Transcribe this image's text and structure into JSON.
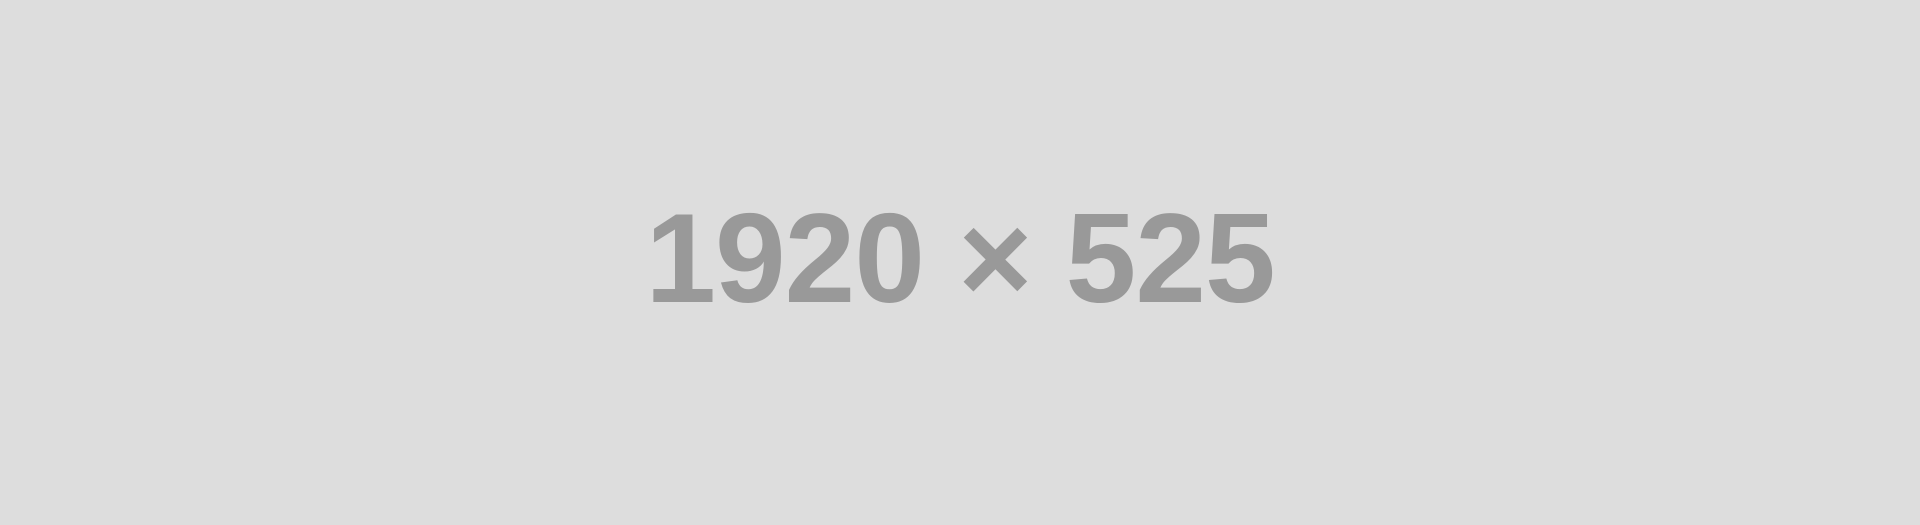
{
  "placeholder": {
    "label": "1920 × 525",
    "background_color": "#dddddd",
    "text_color": "#999999"
  }
}
